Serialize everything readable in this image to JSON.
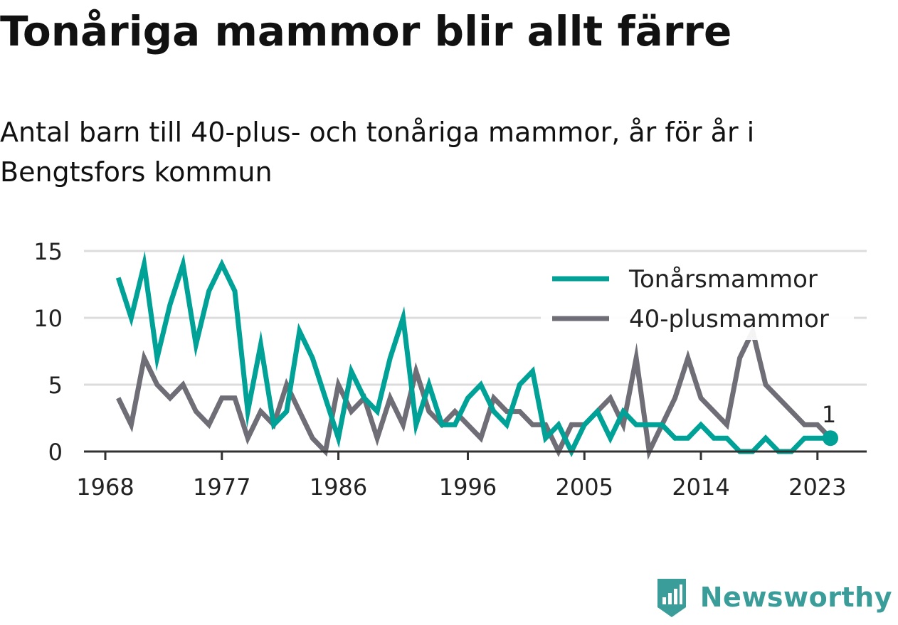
{
  "title": "Tonåriga mammor blir allt färre",
  "subtitle": "Antal barn till 40-plus- och tonåriga mammor, år för år i Bengtsfors kommun",
  "brand": {
    "name": "Newsworthy",
    "logo_icon": "newsworthy-logo-icon",
    "color": "#3a9d99"
  },
  "colors": {
    "teen": "#00a196",
    "forty": "#6f6e77",
    "grid": "#dcdcdc",
    "axis": "#333333",
    "text": "#222222"
  },
  "chart_data": {
    "type": "line",
    "xlim": [
      1967,
      2026
    ],
    "ylim": [
      0,
      15
    ],
    "xticks": [
      1968,
      1977,
      1986,
      1996,
      2005,
      2014,
      2023
    ],
    "yticks": [
      0,
      5,
      10,
      15
    ],
    "grid": true,
    "legend_position": "top-right",
    "x": [
      1969,
      1970,
      1971,
      1972,
      1973,
      1974,
      1975,
      1976,
      1977,
      1978,
      1979,
      1980,
      1981,
      1982,
      1983,
      1984,
      1985,
      1986,
      1987,
      1988,
      1989,
      1990,
      1991,
      1992,
      1993,
      1994,
      1995,
      1996,
      1997,
      1998,
      1999,
      2000,
      2001,
      2002,
      2003,
      2004,
      2005,
      2006,
      2007,
      2008,
      2009,
      2010,
      2011,
      2012,
      2013,
      2014,
      2015,
      2016,
      2017,
      2018,
      2019,
      2020,
      2021,
      2022,
      2023,
      2024
    ],
    "series": [
      {
        "name": "Tonårsmammor",
        "color": "#00a196",
        "values": [
          13,
          10,
          14,
          7,
          11,
          14,
          8,
          12,
          14,
          12,
          3,
          8,
          2,
          3,
          9,
          7,
          4,
          1,
          6,
          4,
          3,
          7,
          10,
          2,
          5,
          2,
          2,
          4,
          5,
          3,
          2,
          5,
          6,
          1,
          2,
          0,
          2,
          3,
          1,
          3,
          2,
          2,
          2,
          1,
          1,
          2,
          1,
          1,
          0,
          0,
          1,
          0,
          0,
          1,
          1,
          1
        ]
      },
      {
        "name": "40-plusmammor",
        "color": "#6f6e77",
        "values": [
          4,
          2,
          7,
          5,
          4,
          5,
          3,
          2,
          4,
          4,
          1,
          3,
          2,
          5,
          3,
          1,
          0,
          5,
          3,
          4,
          1,
          4,
          2,
          6,
          3,
          2,
          3,
          2,
          1,
          4,
          3,
          3,
          2,
          2,
          0,
          2,
          2,
          3,
          4,
          2,
          7,
          0,
          2,
          4,
          7,
          4,
          3,
          2,
          7,
          9,
          5,
          4,
          3,
          2,
          2,
          1
        ]
      }
    ],
    "annotations": [
      {
        "text": "1",
        "x": 2024,
        "y": 1,
        "series": "Tonårsmammor"
      }
    ]
  }
}
